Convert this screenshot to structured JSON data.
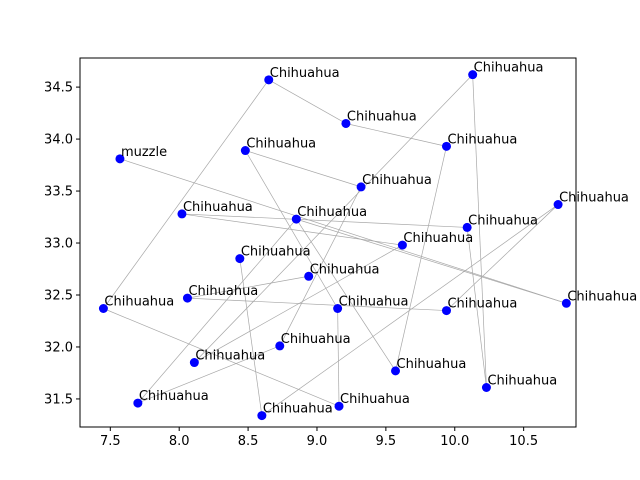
{
  "chart_data": {
    "type": "scatter",
    "title": "",
    "xlabel": "",
    "ylabel": "",
    "xlim": [
      7.28,
      10.88
    ],
    "ylim": [
      31.23,
      34.78
    ],
    "xticks": [
      "7.5",
      "8.0",
      "8.5",
      "9.0",
      "9.5",
      "10.0",
      "10.5"
    ],
    "yticks": [
      "31.5",
      "32.0",
      "32.5",
      "33.0",
      "33.5",
      "34.0",
      "34.5"
    ],
    "grid": false,
    "point_color": "#0000ff",
    "edge_color": "#a8a8a8",
    "points": [
      {
        "x": 8.65,
        "y": 34.57,
        "label": "Chihuahua"
      },
      {
        "x": 10.13,
        "y": 34.62,
        "label": "Chihuahua"
      },
      {
        "x": 9.21,
        "y": 34.15,
        "label": "Chihuahua"
      },
      {
        "x": 7.57,
        "y": 33.81,
        "label": "muzzle"
      },
      {
        "x": 8.48,
        "y": 33.89,
        "label": "Chihuahua"
      },
      {
        "x": 9.94,
        "y": 33.93,
        "label": "Chihuahua"
      },
      {
        "x": 9.32,
        "y": 33.54,
        "label": "Chihuahua"
      },
      {
        "x": 10.75,
        "y": 33.37,
        "label": "Chihuahua"
      },
      {
        "x": 8.02,
        "y": 33.28,
        "label": "Chihuahua"
      },
      {
        "x": 8.85,
        "y": 33.23,
        "label": "Chihuahua"
      },
      {
        "x": 10.09,
        "y": 33.15,
        "label": "Chihuahua"
      },
      {
        "x": 9.62,
        "y": 32.98,
        "label": "Chihuahua"
      },
      {
        "x": 8.44,
        "y": 32.85,
        "label": "Chihuahua"
      },
      {
        "x": 8.94,
        "y": 32.68,
        "label": "Chihuahua"
      },
      {
        "x": 8.06,
        "y": 32.47,
        "label": "Chihuahua"
      },
      {
        "x": 10.81,
        "y": 32.42,
        "label": "Chihuahua"
      },
      {
        "x": 7.45,
        "y": 32.37,
        "label": "Chihuahua"
      },
      {
        "x": 9.15,
        "y": 32.37,
        "label": "Chihuahua"
      },
      {
        "x": 9.94,
        "y": 32.35,
        "label": "Chihuahua"
      },
      {
        "x": 8.73,
        "y": 32.01,
        "label": "Chihuahua"
      },
      {
        "x": 8.11,
        "y": 31.85,
        "label": "Chihuahua"
      },
      {
        "x": 9.57,
        "y": 31.77,
        "label": "Chihuahua"
      },
      {
        "x": 10.23,
        "y": 31.61,
        "label": "Chihuahua"
      },
      {
        "x": 7.7,
        "y": 31.46,
        "label": "Chihuahua"
      },
      {
        "x": 9.16,
        "y": 31.43,
        "label": "Chihuahua"
      },
      {
        "x": 8.6,
        "y": 31.34,
        "label": "Chihuahua"
      }
    ],
    "edges": [
      [
        0,
        2
      ],
      [
        2,
        5
      ],
      [
        0,
        16
      ],
      [
        16,
        24
      ],
      [
        3,
        15
      ],
      [
        8,
        10
      ],
      [
        1,
        20
      ],
      [
        1,
        22
      ],
      [
        4,
        6
      ],
      [
        4,
        17
      ],
      [
        9,
        23
      ],
      [
        9,
        21
      ],
      [
        6,
        19
      ],
      [
        7,
        18
      ],
      [
        7,
        25
      ],
      [
        11,
        8
      ],
      [
        11,
        20
      ],
      [
        12,
        25
      ],
      [
        13,
        14
      ],
      [
        14,
        18
      ],
      [
        15,
        9
      ],
      [
        17,
        24
      ],
      [
        21,
        5
      ],
      [
        22,
        10
      ],
      [
        23,
        19
      ]
    ]
  }
}
